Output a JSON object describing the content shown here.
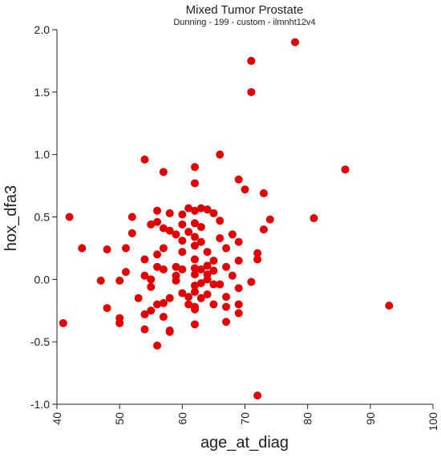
{
  "chart_data": {
    "type": "scatter",
    "title": "Mixed Tumor Prostate",
    "subtitle": "Dunning - 199 - custom - ilmnht12v4",
    "xlabel": "age_at_diag",
    "ylabel": "hox_dfa3",
    "xlim": [
      40,
      100
    ],
    "ylim": [
      -1.0,
      2.0
    ],
    "x_ticks": [
      "40",
      "50",
      "60",
      "70",
      "80",
      "90",
      "100"
    ],
    "y_ticks": [
      "-1.0",
      "-0.5",
      "0.0",
      "0.5",
      "1.0",
      "1.5",
      "2.0"
    ],
    "grid": false,
    "marker_color": "#e00000",
    "points": [
      {
        "x": 78,
        "y": 1.9
      },
      {
        "x": 71,
        "y": 1.75
      },
      {
        "x": 71,
        "y": 1.5
      },
      {
        "x": 66,
        "y": 1.0
      },
      {
        "x": 54,
        "y": 0.96
      },
      {
        "x": 57,
        "y": 0.86
      },
      {
        "x": 62,
        "y": 0.9
      },
      {
        "x": 86,
        "y": 0.88
      },
      {
        "x": 69,
        "y": 0.8
      },
      {
        "x": 62,
        "y": 0.77
      },
      {
        "x": 70,
        "y": 0.72
      },
      {
        "x": 73,
        "y": 0.69
      },
      {
        "x": 64,
        "y": 0.56
      },
      {
        "x": 61,
        "y": 0.57
      },
      {
        "x": 56,
        "y": 0.55
      },
      {
        "x": 62,
        "y": 0.55
      },
      {
        "x": 63,
        "y": 0.57
      },
      {
        "x": 58,
        "y": 0.53
      },
      {
        "x": 42,
        "y": 0.5
      },
      {
        "x": 52,
        "y": 0.5
      },
      {
        "x": 60,
        "y": 0.52
      },
      {
        "x": 65,
        "y": 0.53
      },
      {
        "x": 81,
        "y": 0.49
      },
      {
        "x": 74,
        "y": 0.48
      },
      {
        "x": 66,
        "y": 0.47
      },
      {
        "x": 55,
        "y": 0.44
      },
      {
        "x": 56,
        "y": 0.46
      },
      {
        "x": 60,
        "y": 0.44
      },
      {
        "x": 62,
        "y": 0.45
      },
      {
        "x": 63,
        "y": 0.42
      },
      {
        "x": 57,
        "y": 0.41
      },
      {
        "x": 58,
        "y": 0.39
      },
      {
        "x": 61,
        "y": 0.38
      },
      {
        "x": 73,
        "y": 0.4
      },
      {
        "x": 52,
        "y": 0.37
      },
      {
        "x": 59,
        "y": 0.36
      },
      {
        "x": 62,
        "y": 0.34
      },
      {
        "x": 68,
        "y": 0.36
      },
      {
        "x": 66,
        "y": 0.33
      },
      {
        "x": 60,
        "y": 0.31
      },
      {
        "x": 63,
        "y": 0.3
      },
      {
        "x": 69,
        "y": 0.3
      },
      {
        "x": 44,
        "y": 0.25
      },
      {
        "x": 51,
        "y": 0.25
      },
      {
        "x": 48,
        "y": 0.24
      },
      {
        "x": 57,
        "y": 0.25
      },
      {
        "x": 62,
        "y": 0.27
      },
      {
        "x": 67,
        "y": 0.25
      },
      {
        "x": 56,
        "y": 0.2
      },
      {
        "x": 60,
        "y": 0.22
      },
      {
        "x": 64,
        "y": 0.22
      },
      {
        "x": 72,
        "y": 0.21
      },
      {
        "x": 54,
        "y": 0.16
      },
      {
        "x": 62,
        "y": 0.16
      },
      {
        "x": 65,
        "y": 0.15
      },
      {
        "x": 69,
        "y": 0.15
      },
      {
        "x": 72,
        "y": 0.16
      },
      {
        "x": 56,
        "y": 0.1
      },
      {
        "x": 59,
        "y": 0.1
      },
      {
        "x": 62,
        "y": 0.09
      },
      {
        "x": 64,
        "y": 0.11
      },
      {
        "x": 67,
        "y": 0.1
      },
      {
        "x": 51,
        "y": 0.06
      },
      {
        "x": 57,
        "y": 0.08
      },
      {
        "x": 60,
        "y": 0.08
      },
      {
        "x": 63,
        "y": 0.08
      },
      {
        "x": 65,
        "y": 0.07
      },
      {
        "x": 54,
        "y": 0.03
      },
      {
        "x": 59,
        "y": 0.03
      },
      {
        "x": 62,
        "y": 0.04
      },
      {
        "x": 64,
        "y": 0.04
      },
      {
        "x": 68,
        "y": 0.03
      },
      {
        "x": 55,
        "y": 0.0
      },
      {
        "x": 59,
        "y": -0.01
      },
      {
        "x": 64,
        "y": 0.0
      },
      {
        "x": 47,
        "y": -0.01
      },
      {
        "x": 50,
        "y": -0.01
      },
      {
        "x": 63,
        "y": -0.03
      },
      {
        "x": 65,
        "y": -0.04
      },
      {
        "x": 71,
        "y": -0.02
      },
      {
        "x": 55,
        "y": -0.06
      },
      {
        "x": 62,
        "y": -0.05
      },
      {
        "x": 66,
        "y": -0.04
      },
      {
        "x": 69,
        "y": -0.07
      },
      {
        "x": 60,
        "y": -0.11
      },
      {
        "x": 62,
        "y": -0.1
      },
      {
        "x": 64,
        "y": -0.12
      },
      {
        "x": 53,
        "y": -0.15
      },
      {
        "x": 58,
        "y": -0.15
      },
      {
        "x": 61,
        "y": -0.14
      },
      {
        "x": 63,
        "y": -0.15
      },
      {
        "x": 67,
        "y": -0.14
      },
      {
        "x": 57,
        "y": -0.19
      },
      {
        "x": 56,
        "y": -0.2
      },
      {
        "x": 61,
        "y": -0.2
      },
      {
        "x": 62,
        "y": -0.22
      },
      {
        "x": 65,
        "y": -0.2
      },
      {
        "x": 69,
        "y": -0.2
      },
      {
        "x": 48,
        "y": -0.23
      },
      {
        "x": 55,
        "y": -0.25
      },
      {
        "x": 62,
        "y": -0.24
      },
      {
        "x": 67,
        "y": -0.22
      },
      {
        "x": 93,
        "y": -0.21
      },
      {
        "x": 54,
        "y": -0.28
      },
      {
        "x": 57,
        "y": -0.3
      },
      {
        "x": 69,
        "y": -0.27
      },
      {
        "x": 50,
        "y": -0.31
      },
      {
        "x": 50,
        "y": -0.35
      },
      {
        "x": 62,
        "y": -0.36
      },
      {
        "x": 67,
        "y": -0.34
      },
      {
        "x": 41,
        "y": -0.35
      },
      {
        "x": 54,
        "y": -0.4
      },
      {
        "x": 58,
        "y": -0.41
      },
      {
        "x": 58,
        "y": -0.42
      },
      {
        "x": 56,
        "y": -0.53
      },
      {
        "x": 72,
        "y": -0.93
      }
    ]
  }
}
